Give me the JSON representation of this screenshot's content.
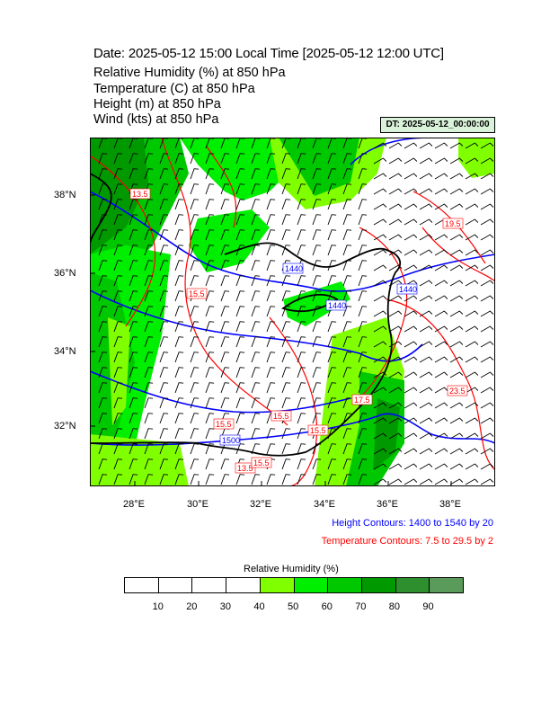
{
  "header": {
    "title": "Date: 2025-05-12  15:00 Local Time [2025-05-12  12:00 UTC]",
    "lines": [
      "Relative Humidity   (%)     at   850 hPa",
      "Temperature   (C)     at   850 hPa",
      "Height   (m)     at   850 hPa",
      "Wind   (kts)     at   850 hPa"
    ],
    "dt_badge": "DT: 2025-05-12_00:00:00"
  },
  "map": {
    "lon_ticks": [
      "28°E",
      "30°E",
      "32°E",
      "34°E",
      "36°E",
      "38°E"
    ],
    "lat_ticks": [
      "38°N",
      "36°N",
      "34°N",
      "32°N"
    ],
    "contour_labels_blue": [
      "1440",
      "1440",
      "1500",
      "1440"
    ],
    "contour_labels_red": [
      "13.5",
      "15.5",
      "19.5",
      "15.5",
      "15.5",
      "15.5",
      "13.5",
      "23.5",
      "17.5",
      "15.5"
    ],
    "colors": {
      "height_contour": "#0000ff",
      "temperature_contour": "#ff0000",
      "coast": "#000000"
    }
  },
  "notes": {
    "height": "Height Contours: 1400 to 1540 by 20",
    "temperature": "Temperature Contours: 7.5 to 29.5 by 2"
  },
  "colorbar": {
    "title": "Relative Humidity  (%)",
    "labels": [
      "10",
      "20",
      "30",
      "40",
      "50",
      "60",
      "70",
      "80",
      "90"
    ],
    "colors": [
      "#ffffff",
      "#ffffff",
      "#ffffff",
      "#ffffff",
      "#80ff00",
      "#00ee00",
      "#00c800",
      "#009900",
      "#2d8f2d",
      "#5a9a5a"
    ]
  }
}
